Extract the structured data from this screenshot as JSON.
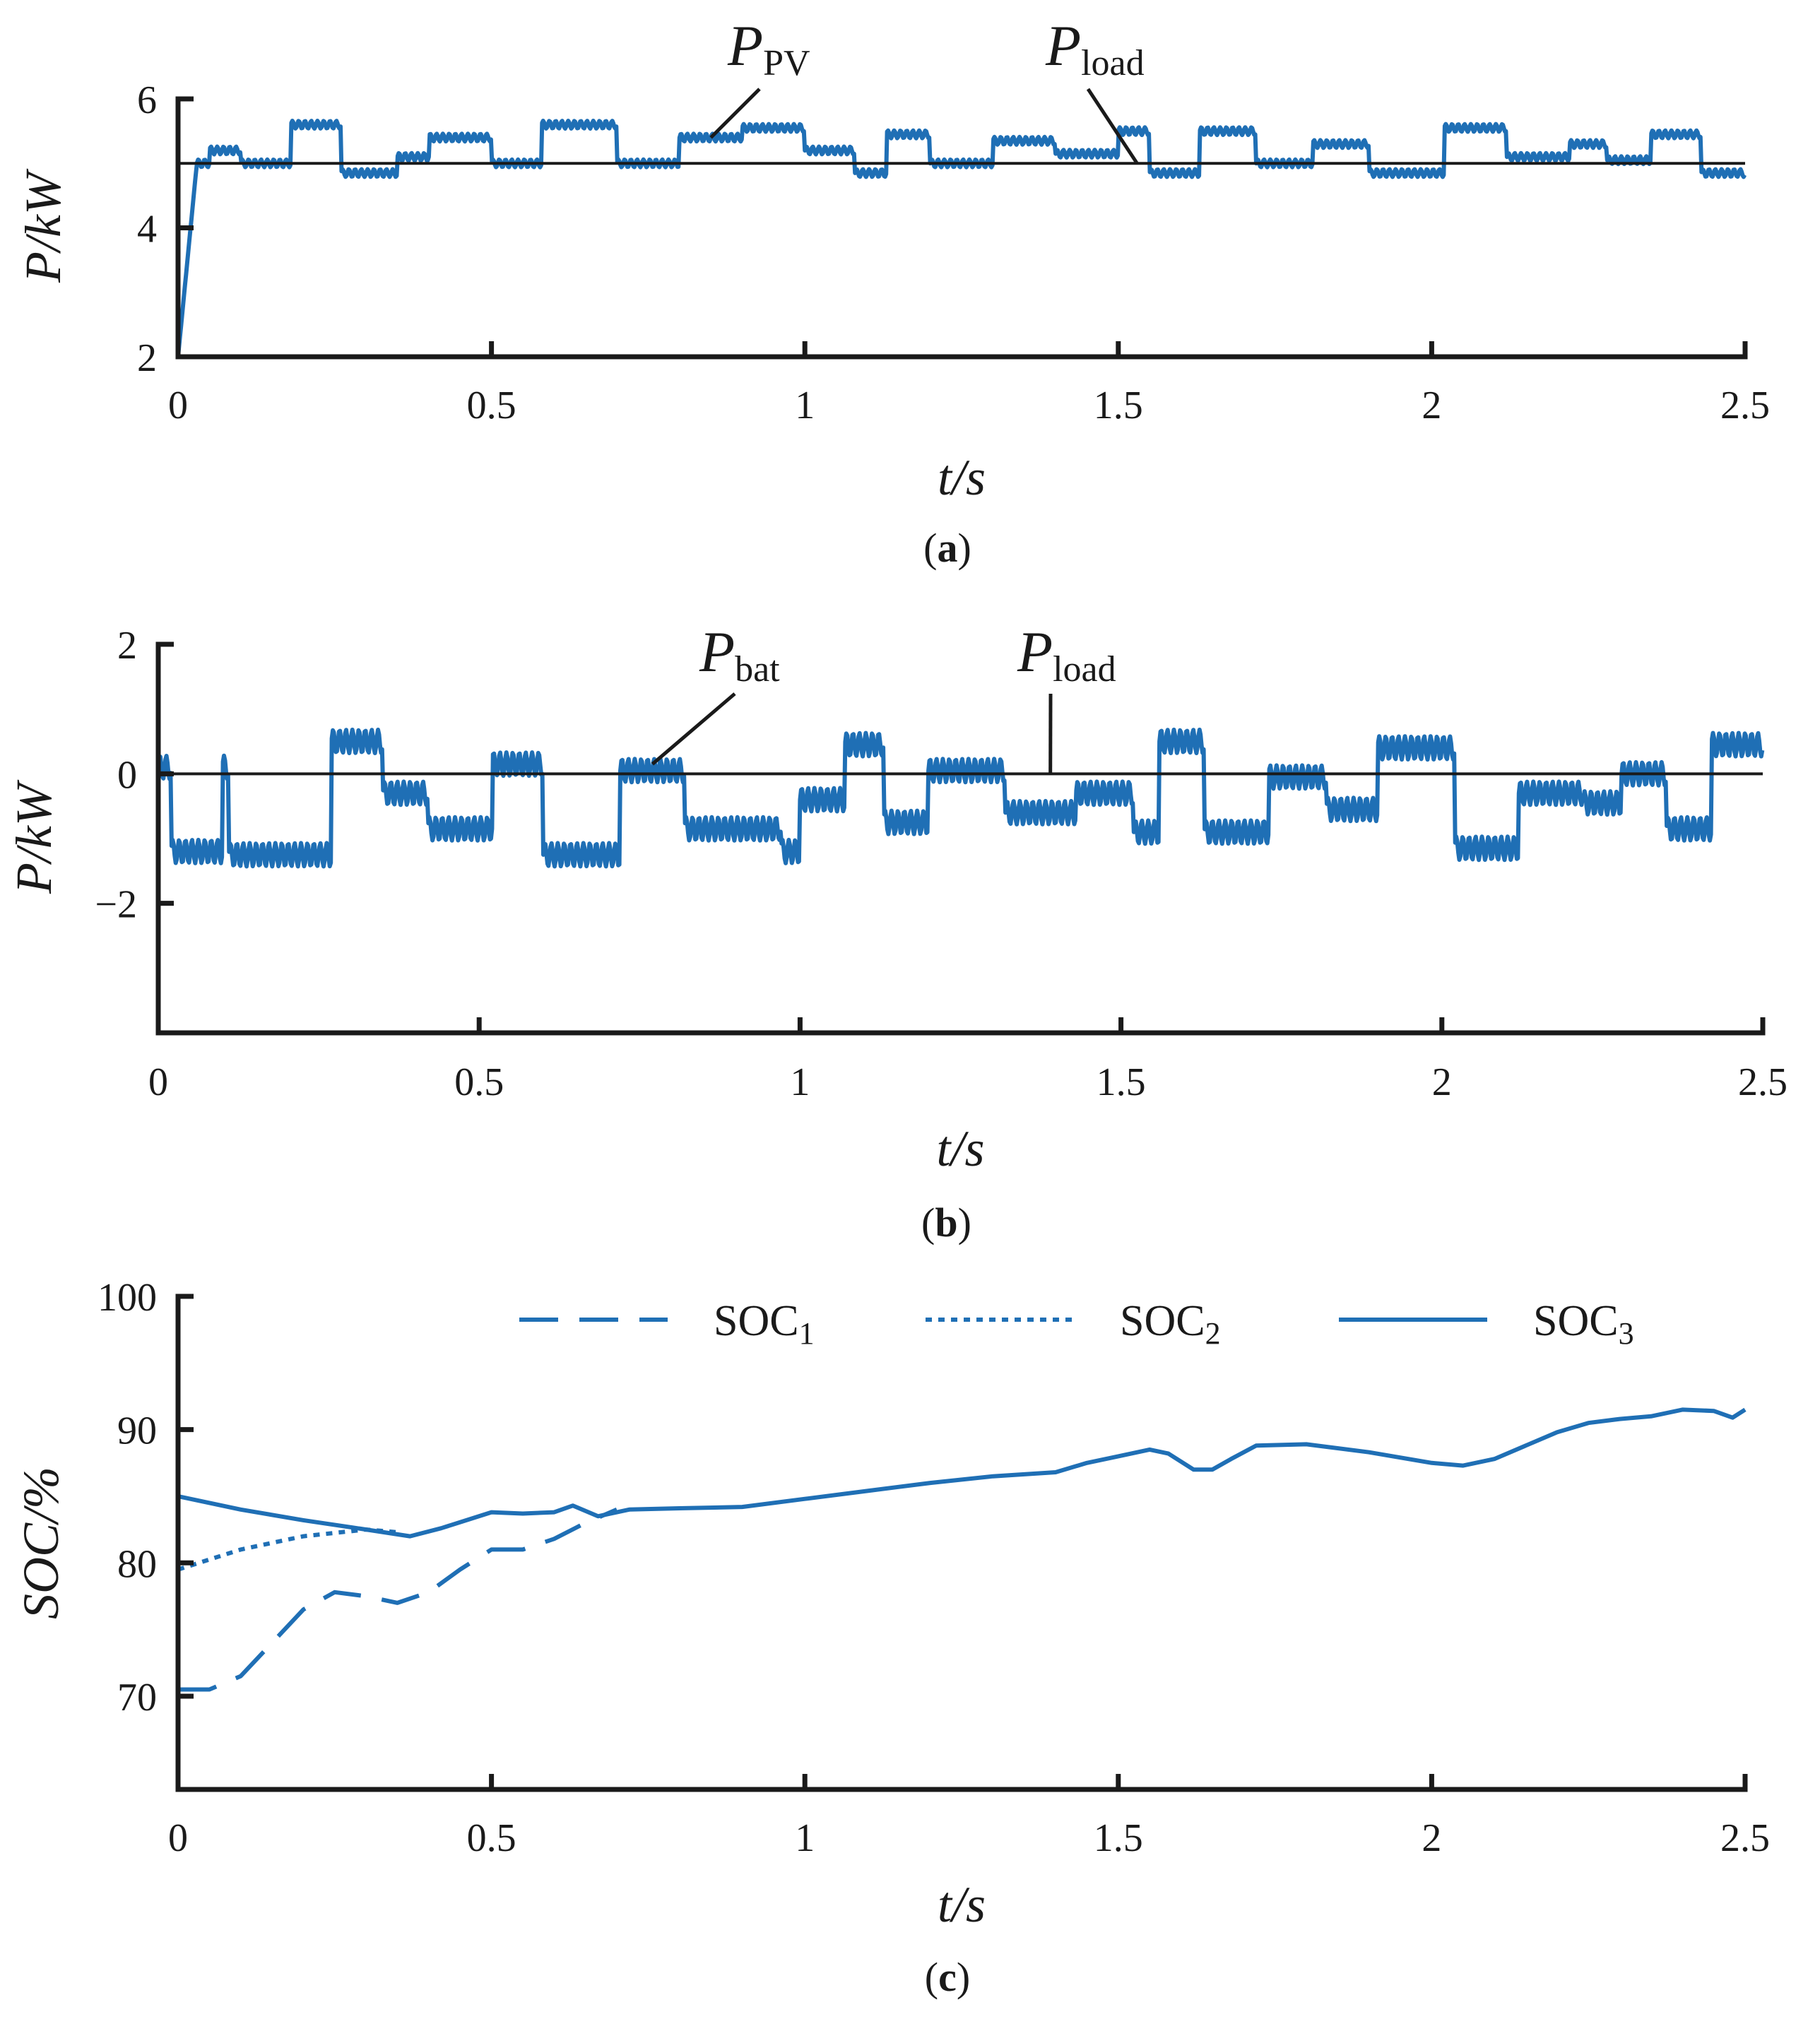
{
  "chart_data": [
    {
      "id": "a",
      "type": "line",
      "caption_letter": "a",
      "xlabel": "t/s",
      "ylabel": "P/kW",
      "xlim": [
        0,
        2.5
      ],
      "ylim": [
        2,
        6
      ],
      "xticks": [
        0,
        0.5,
        1,
        1.5,
        2,
        2.5
      ],
      "xtick_labels": [
        "0",
        "0.5",
        "1",
        "1.5",
        "2",
        "2.5"
      ],
      "yticks": [
        2,
        4,
        6
      ],
      "ytick_labels": [
        "2",
        "4",
        "6"
      ],
      "series": [
        {
          "name": "P_PV",
          "label_main": "P",
          "label_sub": "PV",
          "color": "#1f6fb5",
          "style": "solid",
          "ripple": 0.06,
          "startup": {
            "from": 2.0,
            "t_end": 0.03
          },
          "segments": [
            [
              0,
              0.05,
              5.0
            ],
            [
              0.05,
              0.1,
              5.2
            ],
            [
              0.1,
              0.18,
              5.0
            ],
            [
              0.18,
              0.26,
              5.6
            ],
            [
              0.26,
              0.35,
              4.85
            ],
            [
              0.35,
              0.4,
              5.1
            ],
            [
              0.4,
              0.5,
              5.4
            ],
            [
              0.5,
              0.58,
              5.0
            ],
            [
              0.58,
              0.7,
              5.6
            ],
            [
              0.7,
              0.8,
              5.0
            ],
            [
              0.8,
              0.9,
              5.4
            ],
            [
              0.9,
              1.0,
              5.55
            ],
            [
              1.0,
              1.08,
              5.2
            ],
            [
              1.08,
              1.13,
              4.85
            ],
            [
              1.13,
              1.2,
              5.45
            ],
            [
              1.2,
              1.3,
              5.0
            ],
            [
              1.3,
              1.4,
              5.35
            ],
            [
              1.4,
              1.5,
              5.15
            ],
            [
              1.5,
              1.55,
              5.5
            ],
            [
              1.55,
              1.63,
              4.85
            ],
            [
              1.63,
              1.72,
              5.5
            ],
            [
              1.72,
              1.81,
              5.0
            ],
            [
              1.81,
              1.9,
              5.3
            ],
            [
              1.9,
              2.02,
              4.85
            ],
            [
              2.02,
              2.12,
              5.55
            ],
            [
              2.12,
              2.22,
              5.1
            ],
            [
              2.22,
              2.28,
              5.3
            ],
            [
              2.28,
              2.35,
              5.05
            ],
            [
              2.35,
              2.43,
              5.45
            ],
            [
              2.43,
              2.5,
              4.85
            ]
          ]
        },
        {
          "name": "P_load",
          "label_main": "P",
          "label_sub": "load",
          "color": "#1a1a1a",
          "style": "solid",
          "constant": 5.0
        }
      ]
    },
    {
      "id": "b",
      "type": "line",
      "caption_letter": "b",
      "xlabel": "t/s",
      "ylabel": "P/kW",
      "xlim": [
        0,
        2.5
      ],
      "ylim": [
        -4,
        2
      ],
      "xticks": [
        0,
        0.5,
        1,
        1.5,
        2,
        2.5
      ],
      "xtick_labels": [
        "0",
        "0.5",
        "1",
        "1.5",
        "2",
        "2.5"
      ],
      "yticks": [
        -2,
        0,
        2
      ],
      "ytick_labels": [
        "−2",
        "0",
        "2"
      ],
      "series": [
        {
          "name": "P_bat",
          "label_main": "P",
          "label_sub": "bat",
          "color": "#1f6fb5",
          "style": "solid",
          "ripple": 0.18,
          "segments": [
            [
              0,
              0.02,
              0.1
            ],
            [
              0.02,
              0.1,
              -1.2
            ],
            [
              0.1,
              0.11,
              0.1
            ],
            [
              0.11,
              0.27,
              -1.25
            ],
            [
              0.27,
              0.35,
              0.5
            ],
            [
              0.35,
              0.42,
              -0.3
            ],
            [
              0.42,
              0.52,
              -0.85
            ],
            [
              0.52,
              0.6,
              0.15
            ],
            [
              0.6,
              0.72,
              -1.25
            ],
            [
              0.72,
              0.82,
              0.05
            ],
            [
              0.82,
              0.97,
              -0.85
            ],
            [
              0.97,
              1.0,
              -1.2
            ],
            [
              1.0,
              1.07,
              -0.4
            ],
            [
              1.07,
              1.13,
              0.45
            ],
            [
              1.13,
              1.2,
              -0.75
            ],
            [
              1.2,
              1.32,
              0.05
            ],
            [
              1.32,
              1.43,
              -0.6
            ],
            [
              1.43,
              1.52,
              -0.3
            ],
            [
              1.52,
              1.56,
              -0.9
            ],
            [
              1.56,
              1.63,
              0.5
            ],
            [
              1.63,
              1.73,
              -0.9
            ],
            [
              1.73,
              1.82,
              -0.05
            ],
            [
              1.82,
              1.9,
              -0.55
            ],
            [
              1.9,
              2.02,
              0.4
            ],
            [
              2.02,
              2.12,
              -1.15
            ],
            [
              2.12,
              2.22,
              -0.3
            ],
            [
              2.22,
              2.28,
              -0.45
            ],
            [
              2.28,
              2.35,
              0.0
            ],
            [
              2.35,
              2.42,
              -0.85
            ],
            [
              2.42,
              2.5,
              0.45
            ]
          ]
        },
        {
          "name": "P_load",
          "label_main": "P",
          "label_sub": "load",
          "color": "#1a1a1a",
          "style": "solid",
          "constant": 0.0
        }
      ]
    },
    {
      "id": "c",
      "type": "line",
      "caption_letter": "c",
      "xlabel": "t/s",
      "ylabel": "SOC/%",
      "xlim": [
        0,
        2.5
      ],
      "ylim": [
        63,
        100
      ],
      "xticks": [
        0,
        0.5,
        1,
        1.5,
        2,
        2.5
      ],
      "xtick_labels": [
        "0",
        "0.5",
        "1",
        "1.5",
        "2",
        "2.5"
      ],
      "yticks": [
        70,
        80,
        90,
        100
      ],
      "ytick_labels": [
        "70",
        "80",
        "90",
        "100"
      ],
      "series": [
        {
          "name": "SOC1",
          "label_main": "SOC",
          "label_sub": "1",
          "color": "#1f6fb5",
          "style": "dashed",
          "x": [
            0,
            0.05,
            0.1,
            0.15,
            0.2,
            0.25,
            0.3,
            0.35,
            0.4,
            0.45,
            0.5,
            0.55,
            0.6,
            0.65,
            0.7
          ],
          "y": [
            70.5,
            70.5,
            71.5,
            74,
            76.5,
            77.8,
            77.5,
            77,
            77.8,
            79.5,
            81,
            81,
            81.8,
            83,
            84
          ]
        },
        {
          "name": "SOC2",
          "label_main": "SOC",
          "label_sub": "2",
          "color": "#1f6fb5",
          "style": "dotted",
          "x": [
            0,
            0.1,
            0.2,
            0.3,
            0.35
          ],
          "y": [
            79.5,
            81,
            82,
            82.5,
            82.3
          ]
        },
        {
          "name": "SOC3",
          "label_main": "SOC",
          "label_sub": "3",
          "color": "#1f6fb5",
          "style": "solid",
          "x": [
            0,
            0.1,
            0.2,
            0.3,
            0.37,
            0.42,
            0.5,
            0.55,
            0.6,
            0.63,
            0.67,
            0.72,
            0.8,
            0.9,
            1.0,
            1.1,
            1.2,
            1.3,
            1.4,
            1.45,
            1.5,
            1.55,
            1.58,
            1.62,
            1.65,
            1.68,
            1.72,
            1.8,
            1.9,
            2.0,
            2.05,
            2.1,
            2.15,
            2.2,
            2.25,
            2.3,
            2.35,
            2.4,
            2.45,
            2.48,
            2.5
          ],
          "y": [
            85,
            84,
            83.2,
            82.5,
            82,
            82.6,
            83.8,
            83.7,
            83.8,
            84.3,
            83.5,
            84,
            84.1,
            84.2,
            84.8,
            85.4,
            86,
            86.5,
            86.8,
            87.5,
            88,
            88.5,
            88.2,
            87,
            87,
            87.8,
            88.8,
            88.9,
            88.3,
            87.5,
            87.3,
            87.8,
            88.8,
            89.8,
            90.5,
            90.8,
            91.0,
            91.5,
            91.4,
            90.9,
            91.5
          ]
        }
      ]
    }
  ]
}
